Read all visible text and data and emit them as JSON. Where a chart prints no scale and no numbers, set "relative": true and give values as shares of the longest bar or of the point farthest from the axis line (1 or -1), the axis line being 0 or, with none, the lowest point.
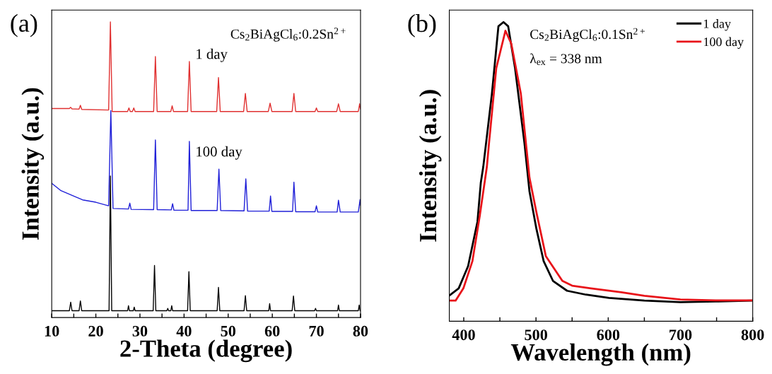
{
  "chart_data": [
    {
      "type": "line",
      "title": "(a)",
      "xlabel": "2-Theta (degree)",
      "ylabel": "Intensity (a.u.)",
      "relative": true,
      "tick_labels": "x",
      "legend": false,
      "grid": false,
      "xlim": [
        10,
        80
      ],
      "xticks": [
        10,
        {
          "value": 15,
          "label": null
        },
        20,
        {
          "value": 25,
          "label": null
        },
        30,
        {
          "value": 35,
          "label": null
        },
        40,
        {
          "value": 45,
          "label": null
        },
        50,
        {
          "value": 55,
          "label": null
        },
        60,
        {
          "value": 65,
          "label": null
        },
        70,
        {
          "value": 75,
          "label": null
        },
        80
      ],
      "annotations": [
        "Cs$_{2}$BiAgCl$_{6}$:0.2Sn$^{2+}$"
      ],
      "series": [
        {
          "name": "1 day",
          "color": "#e03030",
          "x": [
            10,
            14.0,
            14.3,
            14.6,
            16.2,
            16.5,
            16.8,
            22.9,
            23.3,
            23.7,
            27.2,
            27.5,
            27.8,
            28.3,
            28.6,
            28.9,
            33.1,
            33.5,
            33.9,
            37.0,
            37.3,
            37.6,
            40.8,
            41.2,
            41.6,
            47.4,
            47.8,
            48.2,
            53.5,
            53.9,
            54.3,
            59.1,
            59.5,
            59.9,
            64.5,
            64.9,
            65.3,
            69.7,
            70.0,
            70.3,
            74.6,
            75.0,
            75.4,
            79.5,
            79.8,
            80
          ],
          "values": [
            0.707,
            0.707,
            0.711,
            0.706,
            0.705,
            0.718,
            0.704,
            0.702,
            1.0,
            0.697,
            0.697,
            0.709,
            0.697,
            0.697,
            0.709,
            0.697,
            0.697,
            0.883,
            0.697,
            0.697,
            0.716,
            0.697,
            0.697,
            0.866,
            0.697,
            0.697,
            0.812,
            0.697,
            0.697,
            0.758,
            0.697,
            0.697,
            0.725,
            0.697,
            0.697,
            0.758,
            0.697,
            0.697,
            0.709,
            0.697,
            0.697,
            0.723,
            0.697,
            0.697,
            0.723,
            0.705
          ]
        },
        {
          "name": "100 day",
          "color": "#2020d8",
          "x": [
            10,
            12,
            15,
            17,
            20,
            22.9,
            23.4,
            23.9,
            27.4,
            27.7,
            28.0,
            33.1,
            33.5,
            33.9,
            37.1,
            37.4,
            37.7,
            40.9,
            41.2,
            41.6,
            47.5,
            47.9,
            48.3,
            53.6,
            54.0,
            54.4,
            59.3,
            59.6,
            59.9,
            64.6,
            64.9,
            65.3,
            69.7,
            70.0,
            70.3,
            74.7,
            75.0,
            75.4,
            79.5,
            79.9,
            80
          ],
          "values": [
            0.454,
            0.43,
            0.411,
            0.398,
            0.39,
            0.378,
            0.7,
            0.369,
            0.367,
            0.387,
            0.366,
            0.365,
            0.601,
            0.365,
            0.364,
            0.385,
            0.363,
            0.363,
            0.596,
            0.362,
            0.362,
            0.502,
            0.362,
            0.361,
            0.469,
            0.36,
            0.36,
            0.411,
            0.359,
            0.359,
            0.458,
            0.358,
            0.358,
            0.378,
            0.357,
            0.357,
            0.397,
            0.357,
            0.357,
            0.399,
            0.38
          ]
        },
        {
          "color": "#000000",
          "x": [
            10,
            14.0,
            14.3,
            14.6,
            16.2,
            16.5,
            16.8,
            23.0,
            23.3,
            23.6,
            27.2,
            27.4,
            27.6,
            28.5,
            28.7,
            28.9,
            33.0,
            33.3,
            33.6,
            36.1,
            36.3,
            36.5,
            37.0,
            37.2,
            37.4,
            40.8,
            41.1,
            41.4,
            47.5,
            47.8,
            48.1,
            53.6,
            53.9,
            54.2,
            59.2,
            59.4,
            59.6,
            64.5,
            64.8,
            65.1,
            69.6,
            69.8,
            70.0,
            74.8,
            75.0,
            75.2,
            79.5,
            79.7,
            79.9,
            80
          ],
          "values": [
            0.023,
            0.023,
            0.052,
            0.023,
            0.023,
            0.056,
            0.023,
            0.023,
            0.479,
            0.023,
            0.023,
            0.04,
            0.023,
            0.023,
            0.035,
            0.023,
            0.023,
            0.176,
            0.023,
            0.023,
            0.031,
            0.023,
            0.023,
            0.04,
            0.023,
            0.023,
            0.155,
            0.023,
            0.023,
            0.102,
            0.023,
            0.023,
            0.074,
            0.023,
            0.023,
            0.047,
            0.023,
            0.023,
            0.073,
            0.023,
            0.023,
            0.031,
            0.023,
            0.023,
            0.042,
            0.023,
            0.023,
            0.042,
            0.023,
            0.023
          ]
        }
      ]
    },
    {
      "type": "line",
      "title": "(b)",
      "xlabel": "Wavelength (nm)",
      "ylabel": "Intensity (a.u.)",
      "relative": true,
      "tick_labels": "x",
      "legend": "top right",
      "grid": false,
      "xlim": [
        380,
        800
      ],
      "xticks": [
        400,
        {
          "value": 450,
          "label": null
        },
        500,
        {
          "value": 550,
          "label": null
        },
        600,
        {
          "value": 650,
          "label": null
        },
        700,
        {
          "value": 750,
          "label": null
        },
        800
      ],
      "annotations": [
        "Cs$_{2}$BiAgCl$_{6}$:0.1Sn$^{2+}$",
        "λ$_{ex}$ = 338 nm"
      ],
      "series": [
        {
          "name": "1 day",
          "color": "#000000",
          "x": [
            380,
            393,
            406,
            419,
            423.6,
            427,
            439,
            448,
            455,
            461.5,
            471,
            484,
            491,
            500.6,
            510.6,
            523.5,
            543,
            569,
            601,
            650,
            700,
            748.6,
            800
          ],
          "values": [
            0.086,
            0.11,
            0.184,
            0.333,
            0.463,
            0.516,
            0.761,
            0.986,
            1.0,
            0.986,
            0.846,
            0.596,
            0.434,
            0.309,
            0.201,
            0.135,
            0.102,
            0.089,
            0.078,
            0.069,
            0.064,
            0.066,
            0.069
          ]
        },
        {
          "name": "100 day",
          "color": "#e8141a",
          "x": [
            380,
            388.7,
            399.5,
            412,
            422,
            432,
            435,
            445,
            457.7,
            465.8,
            479,
            491,
            500.6,
            513.6,
            536.5,
            550,
            576,
            618,
            650,
            700,
            748.6,
            800
          ],
          "values": [
            0.069,
            0.069,
            0.11,
            0.201,
            0.35,
            0.516,
            0.596,
            0.846,
            0.971,
            0.928,
            0.761,
            0.48,
            0.364,
            0.218,
            0.135,
            0.119,
            0.11,
            0.097,
            0.085,
            0.073,
            0.07,
            0.07
          ]
        }
      ]
    }
  ]
}
